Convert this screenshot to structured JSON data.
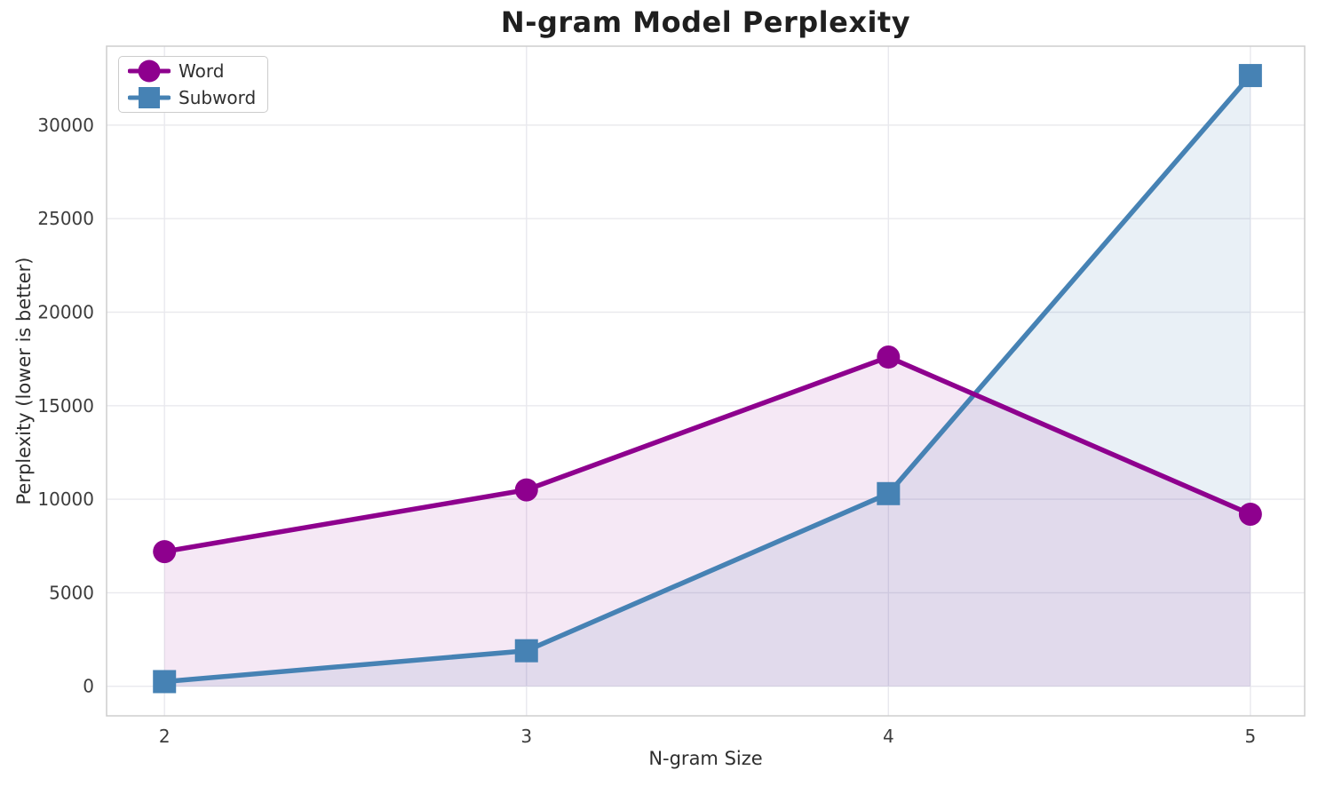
{
  "chart_data": {
    "type": "line",
    "title": "N-gram Model Perplexity",
    "xlabel": "N-gram Size",
    "ylabel": "Perplexity (lower is better)",
    "x": [
      2,
      3,
      4,
      5
    ],
    "categories": [
      "2",
      "3",
      "4",
      "5"
    ],
    "series": [
      {
        "name": "Word",
        "marker": "circle",
        "color": "#8E008E",
        "fill_opacity": 0.09,
        "values": [
          7200,
          10500,
          17600,
          9200
        ]
      },
      {
        "name": "Subword",
        "marker": "square",
        "color": "#4682B4",
        "fill_opacity": 0.12,
        "values": [
          250,
          1900,
          10300,
          32650
        ]
      }
    ],
    "area_fill": true,
    "grid": true,
    "legend_position": "upper left",
    "xlim": [
      1.84,
      5.15
    ],
    "ylim": [
      -1580,
      34220
    ],
    "yticks": [
      0,
      5000,
      10000,
      15000,
      20000,
      25000,
      30000
    ],
    "xticks": [
      2,
      3,
      4,
      5
    ],
    "style": {
      "background": "#ffffff",
      "grid_color": "#e9e9ee",
      "spine_color": "#cdcdcd",
      "tick_color": "#3d3d3d",
      "line_width": 5.5,
      "marker_size": 13
    }
  }
}
